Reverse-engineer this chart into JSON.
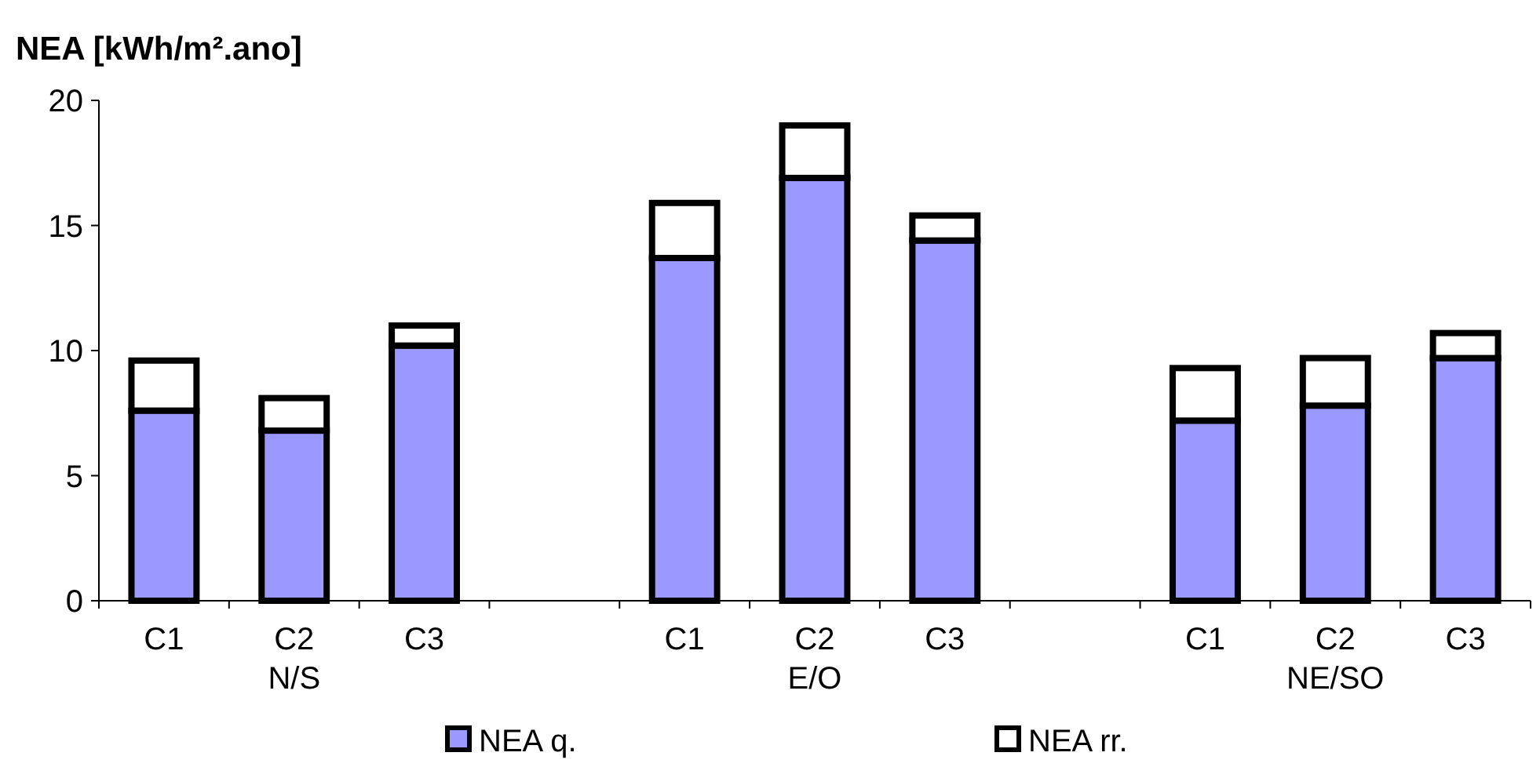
{
  "chart_data": {
    "type": "bar",
    "stacked": true,
    "ylabel": "NEA [kWh/m².ano]",
    "categories": [
      "C1",
      "C2\nN/S",
      "C3",
      null,
      "C1",
      "C2\nE/O",
      "C3",
      null,
      "C1",
      "C2\nNE/SO",
      "C3"
    ],
    "series": [
      {
        "name": "NEA q.",
        "color": "#9999ff",
        "values": [
          7.6,
          6.8,
          10.2,
          null,
          13.7,
          16.9,
          14.4,
          null,
          7.2,
          7.8,
          9.7
        ]
      },
      {
        "name": "NEA rr.",
        "color": "#ffffff",
        "values": [
          2.0,
          1.3,
          0.8,
          null,
          2.2,
          2.1,
          1.0,
          null,
          2.1,
          1.9,
          1.0
        ]
      }
    ],
    "ylim": [
      0,
      20
    ],
    "yticks": [
      0,
      5,
      10,
      15,
      20
    ],
    "grid": false,
    "legend": "bottom"
  }
}
